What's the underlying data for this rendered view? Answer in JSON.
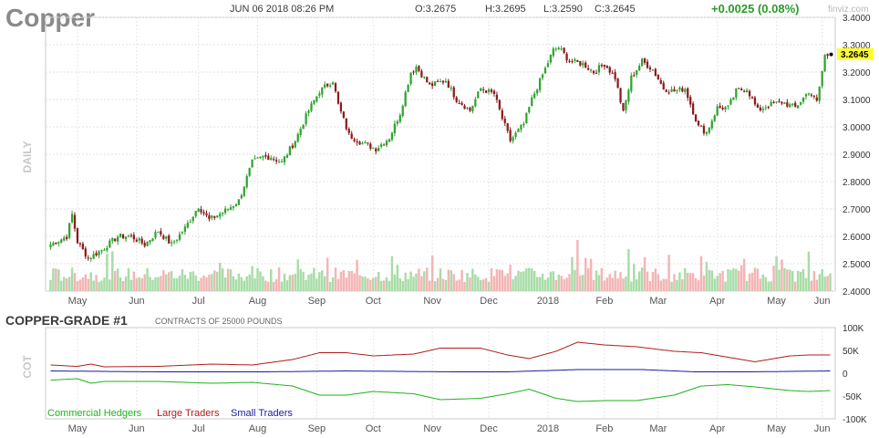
{
  "header": {
    "ticker": "Copper",
    "datetime": "JUN 06 2018 08:26 PM",
    "open": "O:3.2675",
    "high": "H:3.2695",
    "low": "L:3.2590",
    "close": "C:3.2645",
    "change": "+0.0025 (0.08%)",
    "brand": "finviz.com"
  },
  "colors": {
    "up": "#2fa32f",
    "down": "#8b1a1a",
    "volume_up": "#a8dca8",
    "volume_down": "#f3b5b5",
    "commercial": "#1db31d",
    "large": "#b01c1c",
    "small": "#1a1aa0",
    "last_price_bg": "#ffff33"
  },
  "chart_data": [
    {
      "type": "candlestick",
      "side_label": "DAILY",
      "ylim": [
        2.4,
        3.4
      ],
      "yticks": [
        "3.4000",
        "3.3000",
        "3.2000",
        "3.1000",
        "3.0000",
        "2.9000",
        "2.8000",
        "2.7000",
        "2.6000",
        "2.5000",
        "2.4000"
      ],
      "months": [
        "May",
        "Jun",
        "Jul",
        "Aug",
        "Sep",
        "Oct",
        "Nov",
        "Dec",
        "2018",
        "Feb",
        "Mar",
        "Apr",
        "May",
        "Jun"
      ],
      "last_price": "3.2645",
      "anchors": [
        [
          0,
          2.57
        ],
        [
          6,
          2.6
        ],
        [
          8,
          2.68
        ],
        [
          10,
          2.58
        ],
        [
          14,
          2.52
        ],
        [
          19,
          2.55
        ],
        [
          25,
          2.6
        ],
        [
          30,
          2.6
        ],
        [
          35,
          2.57
        ],
        [
          40,
          2.62
        ],
        [
          45,
          2.57
        ],
        [
          50,
          2.63
        ],
        [
          55,
          2.71
        ],
        [
          59,
          2.66
        ],
        [
          66,
          2.7
        ],
        [
          70,
          2.73
        ],
        [
          75,
          2.87
        ],
        [
          79,
          2.89
        ],
        [
          82,
          2.89
        ],
        [
          86,
          2.87
        ],
        [
          91,
          2.95
        ],
        [
          96,
          3.06
        ],
        [
          100,
          3.13
        ],
        [
          105,
          3.17
        ],
        [
          107,
          3.08
        ],
        [
          111,
          2.97
        ],
        [
          116,
          2.94
        ],
        [
          121,
          2.92
        ],
        [
          126,
          2.96
        ],
        [
          130,
          3.05
        ],
        [
          134,
          3.2
        ],
        [
          136,
          3.22
        ],
        [
          141,
          3.15
        ],
        [
          147,
          3.17
        ],
        [
          151,
          3.1
        ],
        [
          156,
          3.06
        ],
        [
          160,
          3.14
        ],
        [
          165,
          3.12
        ],
        [
          168,
          3.03
        ],
        [
          171,
          2.95
        ],
        [
          176,
          3.01
        ],
        [
          179,
          3.1
        ],
        [
          183,
          3.19
        ],
        [
          187,
          3.28
        ],
        [
          189,
          3.29
        ],
        [
          193,
          3.24
        ],
        [
          198,
          3.23
        ],
        [
          202,
          3.2
        ],
        [
          206,
          3.23
        ],
        [
          210,
          3.18
        ],
        [
          213,
          3.05
        ],
        [
          216,
          3.18
        ],
        [
          220,
          3.24
        ],
        [
          224,
          3.21
        ],
        [
          228,
          3.14
        ],
        [
          232,
          3.13
        ],
        [
          236,
          3.14
        ],
        [
          241,
          3.0
        ],
        [
          244,
          2.98
        ],
        [
          248,
          3.07
        ],
        [
          252,
          3.07
        ],
        [
          255,
          3.13
        ],
        [
          259,
          3.14
        ],
        [
          263,
          3.06
        ],
        [
          267,
          3.08
        ],
        [
          272,
          3.09
        ],
        [
          277,
          3.07
        ],
        [
          282,
          3.13
        ],
        [
          285,
          3.09
        ],
        [
          288,
          3.26
        ],
        [
          290,
          3.2645
        ]
      ]
    },
    {
      "type": "line",
      "title": "COPPER-GRADE #1",
      "subtitle": "CONTRACTS OF 25000 POUNDS",
      "side_label": "COT",
      "ylim": [
        -100000,
        100000
      ],
      "yticks": [
        "100K",
        "50K",
        "0",
        "-50K",
        "-100K"
      ],
      "months": [
        "May",
        "Jun",
        "Jul",
        "Aug",
        "Sep",
        "Oct",
        "Nov",
        "Dec",
        "2018",
        "Feb",
        "Mar",
        "Apr",
        "May",
        "Jun"
      ],
      "x_range": [
        0,
        290
      ],
      "series": [
        {
          "name": "Large Traders",
          "color_key": "large",
          "points": [
            [
              0,
              18000
            ],
            [
              10,
              15000
            ],
            [
              15,
              20000
            ],
            [
              20,
              14000
            ],
            [
              40,
              15000
            ],
            [
              60,
              20000
            ],
            [
              75,
              18000
            ],
            [
              90,
              30000
            ],
            [
              100,
              45000
            ],
            [
              110,
              45000
            ],
            [
              120,
              38000
            ],
            [
              135,
              42000
            ],
            [
              145,
              55000
            ],
            [
              160,
              55000
            ],
            [
              170,
              40000
            ],
            [
              178,
              32000
            ],
            [
              188,
              48000
            ],
            [
              196,
              68000
            ],
            [
              206,
              62000
            ],
            [
              218,
              58000
            ],
            [
              232,
              48000
            ],
            [
              242,
              45000
            ],
            [
              252,
              35000
            ],
            [
              262,
              25000
            ],
            [
              275,
              38000
            ],
            [
              282,
              40000
            ],
            [
              290,
              40000
            ]
          ]
        },
        {
          "name": "Small Traders",
          "color_key": "small",
          "points": [
            [
              0,
              5000
            ],
            [
              40,
              3000
            ],
            [
              80,
              3000
            ],
            [
              110,
              5000
            ],
            [
              150,
              3000
            ],
            [
              170,
              3000
            ],
            [
              196,
              8000
            ],
            [
              220,
              8000
            ],
            [
              240,
              3000
            ],
            [
              260,
              3000
            ],
            [
              290,
              5000
            ]
          ]
        },
        {
          "name": "Commercial Hedgers",
          "color_key": "commercial",
          "points": [
            [
              0,
              -15000
            ],
            [
              10,
              -12000
            ],
            [
              15,
              -22000
            ],
            [
              20,
              -18000
            ],
            [
              40,
              -18000
            ],
            [
              60,
              -22000
            ],
            [
              75,
              -20000
            ],
            [
              90,
              -28000
            ],
            [
              100,
              -48000
            ],
            [
              110,
              -48000
            ],
            [
              120,
              -40000
            ],
            [
              135,
              -45000
            ],
            [
              145,
              -58000
            ],
            [
              160,
              -55000
            ],
            [
              170,
              -45000
            ],
            [
              178,
              -35000
            ],
            [
              188,
              -55000
            ],
            [
              196,
              -62000
            ],
            [
              206,
              -60000
            ],
            [
              218,
              -60000
            ],
            [
              232,
              -48000
            ],
            [
              242,
              -28000
            ],
            [
              252,
              -25000
            ],
            [
              262,
              -30000
            ],
            [
              275,
              -38000
            ],
            [
              282,
              -40000
            ],
            [
              290,
              -38000
            ]
          ]
        }
      ]
    }
  ]
}
